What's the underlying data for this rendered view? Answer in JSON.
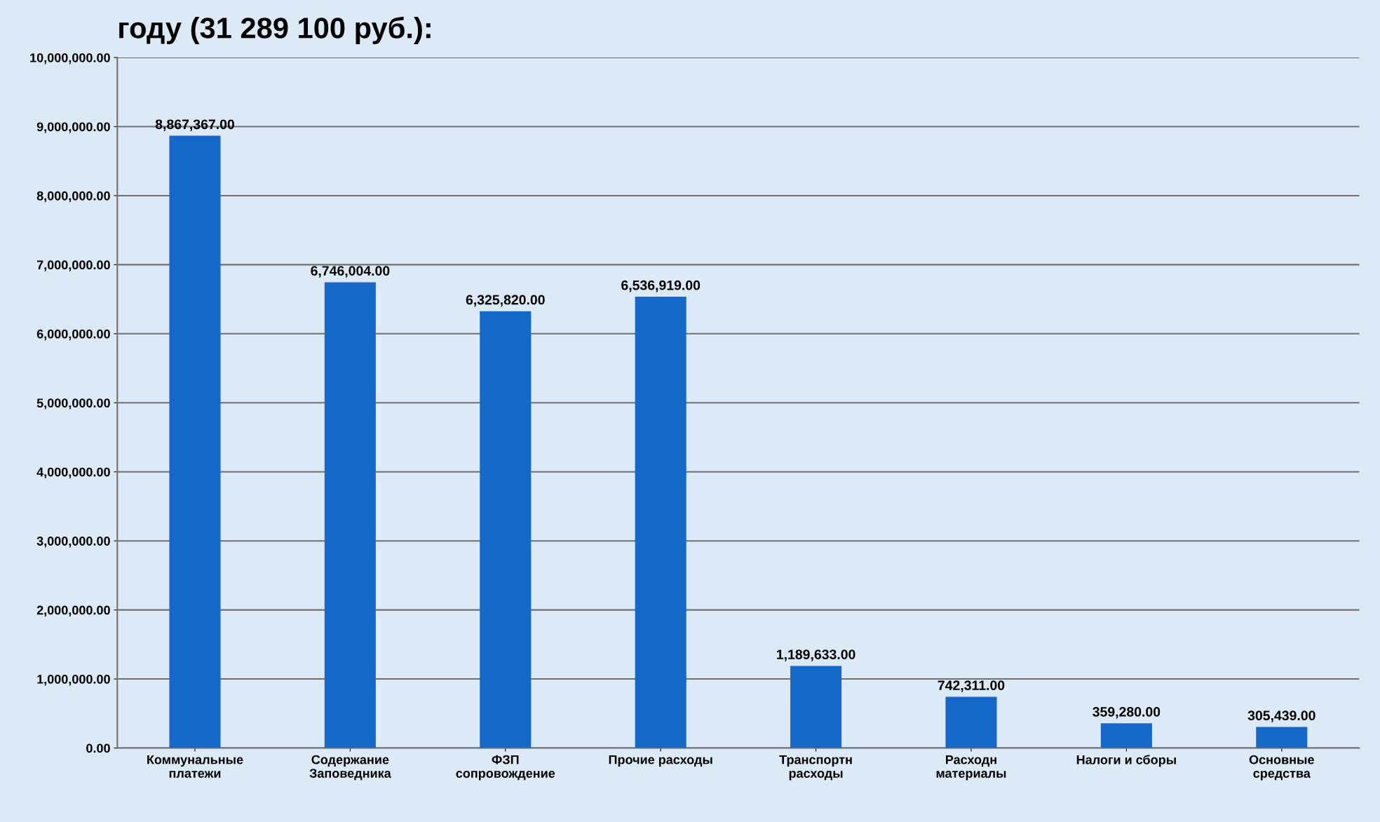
{
  "chart_data": {
    "type": "bar",
    "title": "году (31 289 100 руб.):",
    "categories": [
      "Коммунальные\nплатежи",
      "Содержание\nЗаповедника",
      "ФЗП\nсопровождение",
      "Прочие расходы",
      "Транспортн\nрасходы",
      "Расходн\nматериалы",
      "Налоги и сборы",
      "Основные\nсредства"
    ],
    "values": [
      8867367,
      6746004,
      6325820,
      6536919,
      1189633,
      742311,
      359280,
      305439
    ],
    "value_labels": [
      "8,867,367.00",
      "6,746,004.00",
      "6,325,820.00",
      "6,536,919.00",
      "1,189,633.00",
      "742,311.00",
      "359,280.00",
      "305,439.00"
    ],
    "color": "#1568c8",
    "ylim": [
      0,
      10000000
    ],
    "yticks": [
      {
        "value": 0,
        "label": "0.00"
      },
      {
        "value": 1000000,
        "label": "1,000,000.00"
      },
      {
        "value": 2000000,
        "label": "2,000,000.00"
      },
      {
        "value": 3000000,
        "label": "3,000,000.00"
      },
      {
        "value": 4000000,
        "label": "4,000,000.00"
      },
      {
        "value": 5000000,
        "label": "5,000,000.00"
      },
      {
        "value": 6000000,
        "label": "6,000,000.00"
      },
      {
        "value": 7000000,
        "label": "7,000,000.00"
      },
      {
        "value": 8000000,
        "label": "8,000,000.00"
      },
      {
        "value": 9000000,
        "label": "9,000,000.00"
      },
      {
        "value": 10000000,
        "label": "10,000,000.00"
      }
    ],
    "grid": "y",
    "legend": false
  }
}
